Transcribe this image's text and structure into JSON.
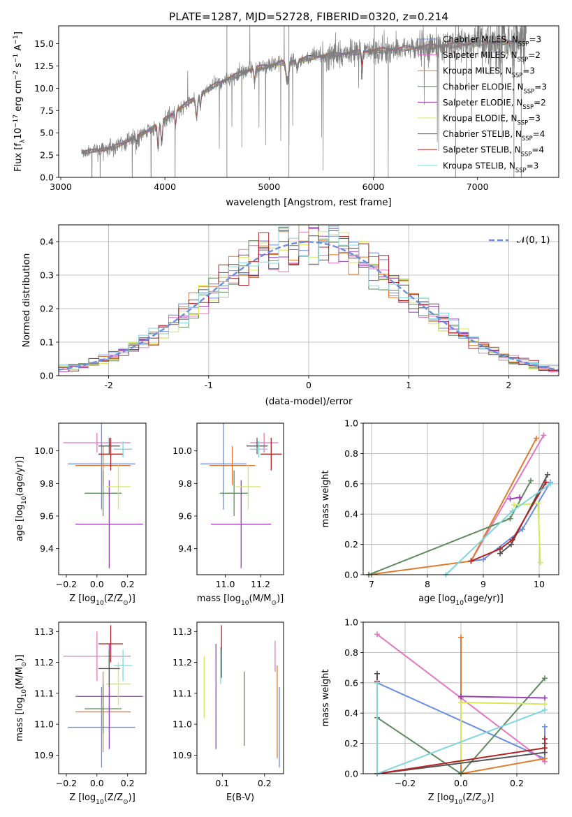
{
  "figure": {
    "title": "PLATE=1287, MJD=52728, FIBERID=0320, z=0.214"
  },
  "legend_spectrum": [
    {
      "label": "Chabrier MILES, N",
      "sub": "SSP",
      "tail": "=3",
      "color": "#6b8ee0"
    },
    {
      "label": "Salpeter MILES, N",
      "sub": "SSP",
      "tail": "=2",
      "color": "#e377c2"
    },
    {
      "label": "Kroupa MILES, N",
      "sub": "SSP",
      "tail": "=3",
      "color": "#e07b2b"
    },
    {
      "label": "Chabrier ELODIE, N",
      "sub": "SSP",
      "tail": "=3",
      "color": "#5e8a5e"
    },
    {
      "label": "Salpeter ELODIE, N",
      "sub": "SSP",
      "tail": "=2",
      "color": "#9b3fb5"
    },
    {
      "label": "Kroupa ELODIE, N",
      "sub": "SSP",
      "tail": "=3",
      "color": "#d6e85a"
    },
    {
      "label": "Chabrier STELIB, N",
      "sub": "SSP",
      "tail": "=4",
      "color": "#555555"
    },
    {
      "label": "Salpeter STELIB, N",
      "sub": "SSP",
      "tail": "=4",
      "color": "#b22222"
    },
    {
      "label": "Kroupa STELIB, N",
      "sub": "SSP",
      "tail": "=3",
      "color": "#7fd6dc"
    }
  ],
  "series_colors": [
    "#6b8ee0",
    "#e377c2",
    "#e07b2b",
    "#5e8a5e",
    "#9b3fb5",
    "#d6e85a",
    "#555555",
    "#b22222",
    "#7fd6dc"
  ],
  "chart_data": [
    {
      "id": "spectrum",
      "type": "line",
      "title": "PLATE=1287, MJD=52728, FIBERID=0320, z=0.214",
      "xlabel": "wavelength [Angstrom, rest frame]",
      "ylabel": "Flux [f",
      "ylabel_sub": "λ",
      "ylabel_tail": "10",
      "ylabel_sup": "−17",
      "ylabel_tail2": " erg cm",
      "ylabel_sup2": "−2",
      "ylabel_tail3": " s",
      "ylabel_sup3": "−1",
      "ylabel_tail4": " A",
      "ylabel_sup4": "−1",
      "ylabel_end": "]",
      "xlim": [
        2980,
        7780
      ],
      "ylim": [
        0,
        17
      ],
      "xticks": [
        3000,
        4000,
        5000,
        6000,
        7000
      ],
      "yticks": [
        0.0,
        2.5,
        5.0,
        7.5,
        10.0,
        12.5,
        15.0
      ],
      "ytick_labels": [
        "0.0",
        "2.5",
        "5.0",
        "7.5",
        "10.0",
        "12.5",
        "15.0"
      ],
      "grid": false,
      "legend_position": "upper-right",
      "x_range": [
        3200,
        7470
      ],
      "continuum_knots": [
        [
          3200,
          2.8
        ],
        [
          3500,
          3.3
        ],
        [
          3800,
          5.0
        ],
        [
          4000,
          6.5
        ],
        [
          4200,
          8.2
        ],
        [
          4500,
          10.5
        ],
        [
          4800,
          12.0
        ],
        [
          5100,
          12.8
        ],
        [
          5500,
          13.6
        ],
        [
          6000,
          14.2
        ],
        [
          6500,
          14.6
        ],
        [
          7000,
          15.0
        ],
        [
          7470,
          15.3
        ]
      ]
    },
    {
      "id": "residual_hist",
      "type": "bar",
      "xlabel": "(data-model)/error",
      "ylabel": "Normed distribution",
      "xlim": [
        -2.5,
        2.5
      ],
      "ylim": [
        0,
        0.45
      ],
      "xticks": [
        -2,
        -1,
        0,
        1,
        2
      ],
      "yticks": [
        0.0,
        0.1,
        0.2,
        0.3,
        0.4
      ],
      "ytick_labels": [
        "0.0",
        "0.1",
        "0.2",
        "0.3",
        "0.4"
      ],
      "grid": true,
      "legend": "𝒩(0, 1)",
      "legend_position": "upper-right",
      "bin_width": 0.1,
      "gaussian": {
        "mean": 0,
        "sigma": 1
      }
    },
    {
      "id": "age_vs_Z",
      "type": "scatter",
      "xlabel": "Z [log",
      "xlabel_sub": "10",
      "xlabel_tail": "(Z/Z",
      "xlabel_sub2": "⊙",
      "xlabel_end": ")]",
      "ylabel": "age  [log",
      "ylabel_sub": "10",
      "ylabel_end": "(age/yr)]",
      "xlim": [
        -0.25,
        0.32
      ],
      "ylim": [
        9.24,
        10.17
      ],
      "xticks": [
        -0.2,
        0.0,
        0.2
      ],
      "xtick_labels": [
        "−0.2",
        "0.0",
        "0.2"
      ],
      "yticks": [
        9.4,
        9.6,
        9.8,
        10.0
      ],
      "ytick_labels": [
        "9.4",
        "9.6",
        "9.8",
        "10.0"
      ],
      "grid": false,
      "points": [
        {
          "x": 0.03,
          "xerr": 0.22,
          "y": 9.92,
          "yerr": 0.28
        },
        {
          "x": 0.0,
          "xerr": 0.22,
          "y": 10.05,
          "yerr": 0.06
        },
        {
          "x": 0.04,
          "xerr": 0.18,
          "y": 9.91,
          "yerr": 0.12
        },
        {
          "x": 0.04,
          "xerr": 0.12,
          "y": 9.74,
          "yerr": 0.14
        },
        {
          "x": 0.08,
          "xerr": 0.22,
          "y": 9.55,
          "yerr": 0.27
        },
        {
          "x": 0.14,
          "xerr": 0.08,
          "y": 9.78,
          "yerr": 0.14
        },
        {
          "x": 0.08,
          "xerr": 0.07,
          "y": 10.03,
          "yerr": 0.05
        },
        {
          "x": 0.09,
          "xerr": 0.08,
          "y": 9.98,
          "yerr": 0.1
        },
        {
          "x": 0.17,
          "xerr": 0.06,
          "y": 10.01,
          "yerr": 0.05
        }
      ]
    },
    {
      "id": "age_vs_mass",
      "type": "scatter",
      "xlabel": "mass [log",
      "xlabel_sub": "10",
      "xlabel_tail": "(M/M",
      "xlabel_sub2": "⊙",
      "xlabel_end": ")]",
      "xlim": [
        10.84,
        11.33
      ],
      "ylim": [
        9.24,
        10.17
      ],
      "xticks": [
        11.0,
        11.2
      ],
      "xtick_labels": [
        "11.0",
        "11.2"
      ],
      "yticks": [
        9.4,
        9.6,
        9.8,
        10.0
      ],
      "ytick_labels": [
        "9.4",
        "9.6",
        "9.8",
        "10.0"
      ],
      "grid": false,
      "points": [
        {
          "x": 10.99,
          "xerr": 0.13,
          "y": 9.92,
          "yerr": 0.28
        },
        {
          "x": 11.22,
          "xerr": 0.08,
          "y": 10.05,
          "yerr": 0.06
        },
        {
          "x": 11.04,
          "xerr": 0.13,
          "y": 9.91,
          "yerr": 0.12
        },
        {
          "x": 11.05,
          "xerr": 0.08,
          "y": 9.74,
          "yerr": 0.14
        },
        {
          "x": 11.09,
          "xerr": 0.17,
          "y": 9.55,
          "yerr": 0.27
        },
        {
          "x": 11.13,
          "xerr": 0.07,
          "y": 9.78,
          "yerr": 0.14
        },
        {
          "x": 11.18,
          "xerr": 0.06,
          "y": 10.03,
          "yerr": 0.05
        },
        {
          "x": 11.26,
          "xerr": 0.06,
          "y": 9.98,
          "yerr": 0.1
        },
        {
          "x": 11.19,
          "xerr": 0.05,
          "y": 10.01,
          "yerr": 0.05
        }
      ]
    },
    {
      "id": "weight_vs_age",
      "type": "line",
      "xlabel": "age  [log",
      "xlabel_sub": "10",
      "xlabel_end": "(age/yr)]",
      "ylabel": "mass weight",
      "xlim": [
        6.85,
        10.35
      ],
      "ylim": [
        0,
        1.0
      ],
      "xticks": [
        7,
        8,
        9,
        10
      ],
      "xtick_labels": [
        "7",
        "8",
        "9",
        "10"
      ],
      "yticks": [
        0.0,
        0.2,
        0.4,
        0.6,
        0.8,
        1.0
      ],
      "ytick_labels": [
        "0.0",
        "0.2",
        "0.4",
        "0.6",
        "0.8",
        "1.0"
      ],
      "grid": true,
      "series": [
        {
          "x": [
            8.78,
            9.0,
            9.7,
            10.2
          ],
          "y": [
            0.09,
            0.1,
            0.3,
            0.61
          ]
        },
        {
          "x": [
            8.78,
            10.08
          ],
          "y": [
            0.09,
            0.92
          ]
        },
        {
          "x": [
            6.95,
            8.78,
            9.95
          ],
          "y": [
            0.0,
            0.09,
            0.9
          ]
        },
        {
          "x": [
            6.95,
            9.48,
            9.85
          ],
          "y": [
            0.0,
            0.37,
            0.62
          ]
        },
        {
          "x": [
            9.48,
            9.65
          ],
          "y": [
            0.5,
            0.51
          ]
        },
        {
          "x": [
            9.55,
            9.98,
            10.02
          ],
          "y": [
            0.46,
            0.47,
            0.08
          ]
        },
        {
          "x": [
            9.3,
            9.5,
            10.15
          ],
          "y": [
            0.14,
            0.2,
            0.66
          ]
        },
        {
          "x": [
            8.78,
            9.3,
            9.52,
            10.12
          ],
          "y": [
            0.09,
            0.17,
            0.23,
            0.61
          ]
        },
        {
          "x": [
            8.33,
            9.52,
            10.2
          ],
          "y": [
            0.0,
            0.42,
            0.6
          ]
        }
      ]
    },
    {
      "id": "mass_vs_Z",
      "type": "scatter",
      "xlabel": "Z [log",
      "xlabel_sub": "10",
      "xlabel_tail": "(Z/Z",
      "xlabel_sub2": "⊙",
      "xlabel_end": ")]",
      "ylabel": "mass [log",
      "ylabel_sub": "10",
      "ylabel_tail": "(M/M",
      "ylabel_sub2": "⊙",
      "ylabel_end": ")]",
      "xlim": [
        -0.25,
        0.32
      ],
      "ylim": [
        10.84,
        11.33
      ],
      "xticks": [
        -0.2,
        0.0,
        0.2
      ],
      "xtick_labels": [
        "−0.2",
        "0.0",
        "0.2"
      ],
      "yticks": [
        10.9,
        11.0,
        11.1,
        11.2,
        11.3
      ],
      "ytick_labels": [
        "10.9",
        "11.0",
        "11.1",
        "11.2",
        "11.3"
      ],
      "grid": false,
      "points": [
        {
          "x": 0.03,
          "xerr": 0.22,
          "y": 10.99,
          "yerr": 0.13
        },
        {
          "x": 0.0,
          "xerr": 0.22,
          "y": 11.22,
          "yerr": 0.08
        },
        {
          "x": 0.04,
          "xerr": 0.18,
          "y": 11.04,
          "yerr": 0.13
        },
        {
          "x": 0.04,
          "xerr": 0.12,
          "y": 11.05,
          "yerr": 0.08
        },
        {
          "x": 0.08,
          "xerr": 0.22,
          "y": 11.09,
          "yerr": 0.17
        },
        {
          "x": 0.14,
          "xerr": 0.08,
          "y": 11.13,
          "yerr": 0.07
        },
        {
          "x": 0.08,
          "xerr": 0.07,
          "y": 11.18,
          "yerr": 0.06
        },
        {
          "x": 0.09,
          "xerr": 0.08,
          "y": 11.26,
          "yerr": 0.06
        },
        {
          "x": 0.17,
          "xerr": 0.06,
          "y": 11.19,
          "yerr": 0.05
        }
      ]
    },
    {
      "id": "mass_vs_ebv",
      "type": "scatter",
      "xlabel": "E(B-V)",
      "xlim": [
        0.04,
        0.245
      ],
      "ylim": [
        10.84,
        11.33
      ],
      "xticks": [
        0.1,
        0.2
      ],
      "xtick_labels": [
        "0.1",
        "0.2"
      ],
      "yticks": [
        10.9,
        11.0,
        11.1,
        11.2,
        11.3
      ],
      "ytick_labels": [
        "10.9",
        "11.0",
        "11.1",
        "11.2",
        "11.3"
      ],
      "grid": false,
      "points": [
        {
          "x": 0.235,
          "y": 10.99,
          "yerr": 0.13
        },
        {
          "x": 0.225,
          "y": 11.22,
          "yerr": 0.05
        },
        {
          "x": 0.23,
          "y": 11.04,
          "yerr": 0.15
        },
        {
          "x": 0.152,
          "y": 11.05,
          "yerr": 0.12
        },
        {
          "x": 0.085,
          "y": 11.09,
          "yerr": 0.17
        },
        {
          "x": 0.057,
          "y": 11.12,
          "yerr": 0.1
        },
        {
          "x": 0.098,
          "y": 11.2,
          "yerr": 0.05
        },
        {
          "x": 0.098,
          "y": 11.28,
          "yerr": 0.04
        },
        {
          "x": 0.096,
          "y": 11.19,
          "yerr": 0.06
        }
      ]
    },
    {
      "id": "weight_vs_Z",
      "type": "line",
      "xlabel": "Z [log",
      "xlabel_sub": "10",
      "xlabel_tail": "(Z/Z",
      "xlabel_sub2": "⊙",
      "xlabel_end": ")]",
      "ylabel": "mass weight",
      "xlim": [
        -0.35,
        0.35
      ],
      "ylim": [
        0,
        1.0
      ],
      "xticks": [
        -0.2,
        0.0,
        0.2
      ],
      "xtick_labels": [
        "−0.2",
        "0.0",
        "0.2"
      ],
      "yticks": [
        0.0,
        0.2,
        0.4,
        0.6,
        0.8,
        1.0
      ],
      "ytick_labels": [
        "0.0",
        "0.2",
        "0.4",
        "0.6",
        "0.8",
        "1.0"
      ],
      "grid": true,
      "series": [
        {
          "x": [
            -0.3,
            0.3,
            0.3
          ],
          "y": [
            0.6,
            0.1,
            0.31
          ]
        },
        {
          "x": [
            -0.3,
            0.0,
            0.3
          ],
          "y": [
            0.92,
            0.5,
            0.08
          ]
        },
        {
          "x": [
            0.0,
            0.0,
            0.3
          ],
          "y": [
            0.9,
            0.0,
            0.1
          ]
        },
        {
          "x": [
            -0.3,
            0.0,
            0.3
          ],
          "y": [
            0.37,
            0.0,
            0.63
          ]
        },
        {
          "x": [
            0.0,
            0.3
          ],
          "y": [
            0.51,
            0.5
          ]
        },
        {
          "x": [
            0.0,
            0.0,
            0.3
          ],
          "y": [
            0.08,
            0.47,
            0.46
          ]
        },
        {
          "x": [
            -0.3,
            -0.3,
            0.3,
            0.3
          ],
          "y": [
            0.66,
            0.0,
            0.14,
            0.2
          ]
        },
        {
          "x": [
            -0.3,
            -0.3,
            0.3,
            0.3
          ],
          "y": [
            0.61,
            0.0,
            0.17,
            0.23
          ]
        },
        {
          "x": [
            -0.3,
            -0.3,
            0.3
          ],
          "y": [
            0.6,
            0.0,
            0.42
          ]
        }
      ]
    }
  ]
}
